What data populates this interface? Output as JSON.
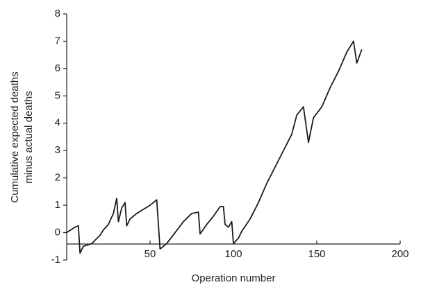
{
  "chart_data": {
    "type": "line",
    "y_label": [
      "Cumulative expected deaths",
      "minus actual deaths"
    ],
    "x_label": "Operation number",
    "xlim": [
      0,
      200
    ],
    "xticks": [
      50,
      100,
      150,
      200
    ],
    "ylim": [
      -1,
      8
    ],
    "yticks": [
      -1,
      0,
      1,
      2,
      3,
      4,
      5,
      6,
      7,
      8
    ],
    "series": [
      {
        "color": "#1a1a1a",
        "x": [
          0,
          5,
          7,
          8,
          10,
          15,
          20,
          22,
          25,
          28,
          30,
          31,
          33,
          35,
          36,
          38,
          42,
          46,
          50,
          54,
          55,
          56,
          60,
          65,
          70,
          75,
          79,
          80,
          84,
          88,
          92,
          94,
          95,
          97,
          99,
          100,
          103,
          105,
          110,
          115,
          120,
          125,
          130,
          135,
          138,
          142,
          145,
          148,
          153,
          158,
          163,
          168,
          172,
          174,
          177
        ],
        "values": [
          0,
          0.2,
          0.25,
          -0.75,
          -0.5,
          -0.4,
          -0.1,
          0.1,
          0.3,
          0.7,
          1.25,
          0.4,
          0.9,
          1.1,
          0.25,
          0.5,
          0.7,
          0.85,
          1.0,
          1.2,
          0.3,
          -0.6,
          -0.4,
          0,
          0.4,
          0.7,
          0.75,
          -0.05,
          0.3,
          0.6,
          0.95,
          0.95,
          0.3,
          0.2,
          0.4,
          -0.4,
          -0.2,
          0.05,
          0.5,
          1.1,
          1.8,
          2.4,
          3.0,
          3.6,
          4.3,
          4.6,
          3.3,
          4.2,
          4.6,
          5.3,
          5.9,
          6.6,
          7.0,
          6.2,
          6.7
        ]
      }
    ]
  }
}
